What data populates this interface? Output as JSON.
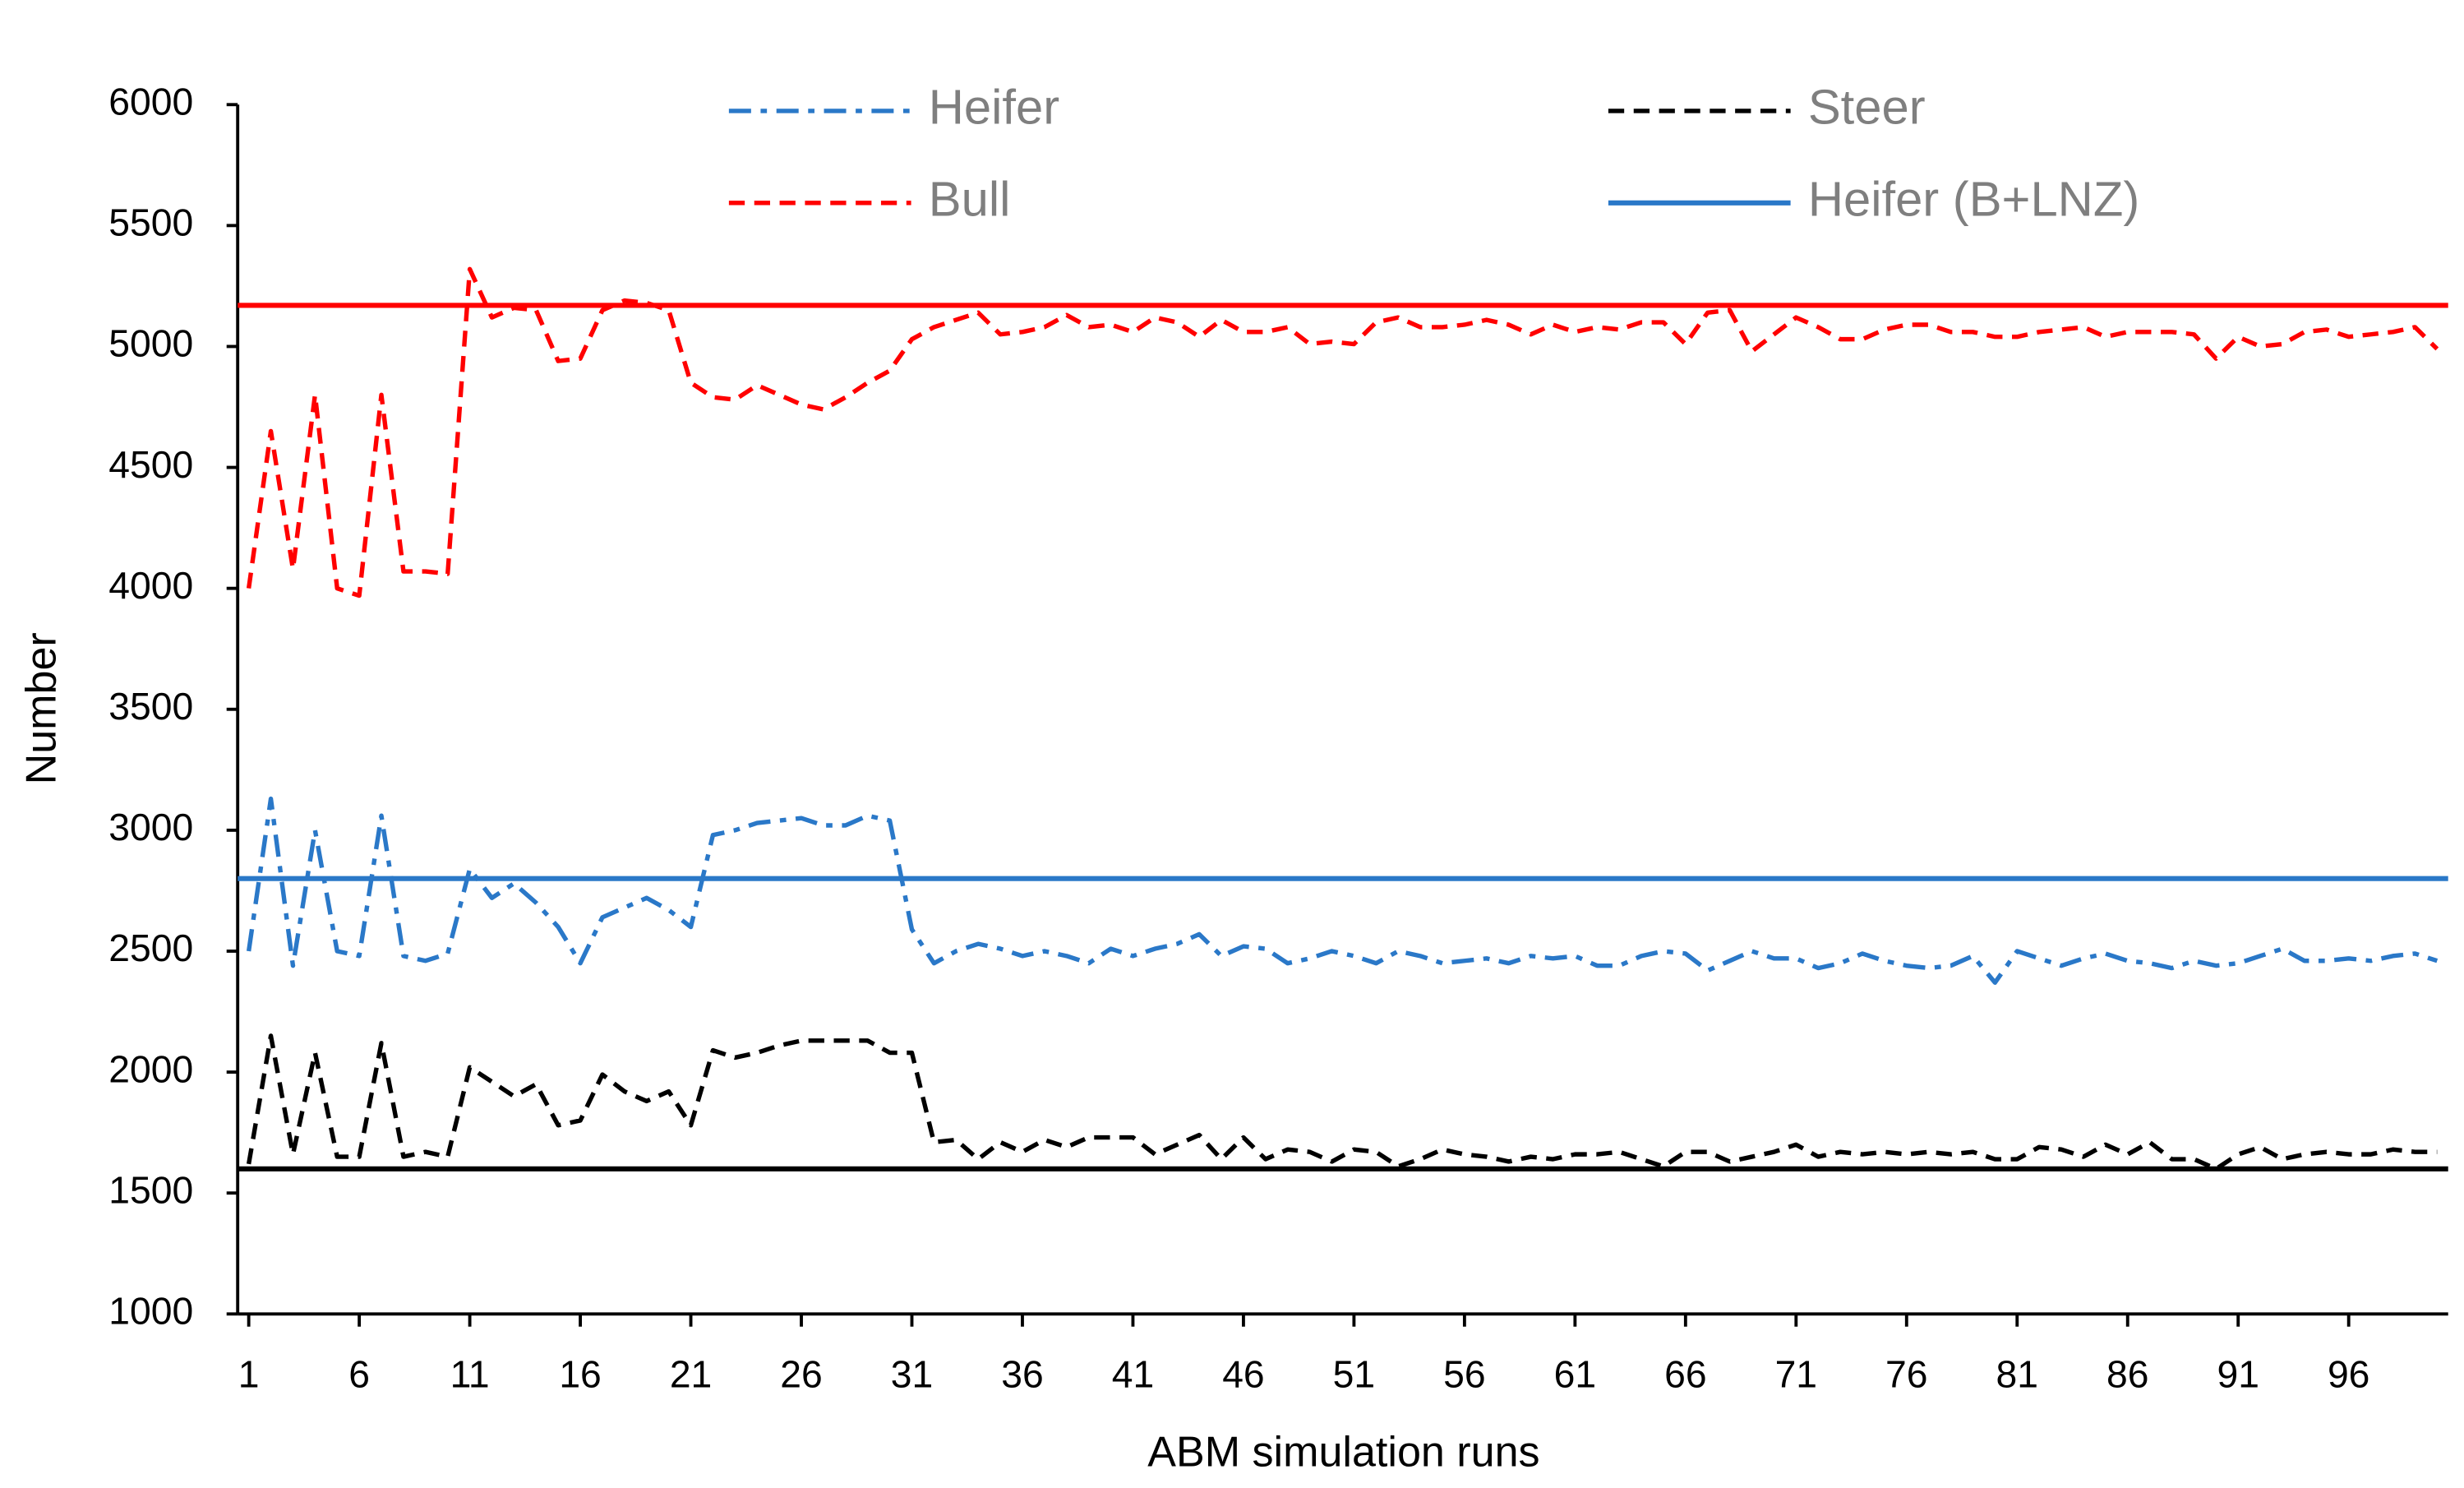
{
  "chart_data": {
    "type": "line",
    "x_label": "ABM simulation runs",
    "y_label": "Number",
    "x": [
      1,
      2,
      3,
      4,
      5,
      6,
      7,
      8,
      9,
      10,
      11,
      12,
      13,
      14,
      15,
      16,
      17,
      18,
      19,
      20,
      21,
      22,
      23,
      24,
      25,
      26,
      27,
      28,
      29,
      30,
      31,
      32,
      33,
      34,
      35,
      36,
      37,
      38,
      39,
      40,
      41,
      42,
      43,
      44,
      45,
      46,
      47,
      48,
      49,
      50,
      51,
      52,
      53,
      54,
      55,
      56,
      57,
      58,
      59,
      60,
      61,
      62,
      63,
      64,
      65,
      66,
      67,
      68,
      69,
      70,
      71,
      72,
      73,
      74,
      75,
      76,
      77,
      78,
      79,
      80,
      81,
      82,
      83,
      84,
      85,
      86,
      87,
      88,
      89,
      90,
      91,
      92,
      93,
      94,
      95,
      96,
      97,
      98,
      99,
      100
    ],
    "xlim": [
      0.5,
      100.5
    ],
    "xticks": [
      1,
      6,
      11,
      16,
      21,
      26,
      31,
      36,
      41,
      46,
      51,
      56,
      61,
      66,
      71,
      76,
      81,
      86,
      91,
      96
    ],
    "ylim": [
      1000,
      6000
    ],
    "yticks": [
      1000,
      1500,
      2000,
      2500,
      3000,
      3500,
      4000,
      4500,
      5000,
      5500,
      6000
    ],
    "series": [
      {
        "name": "Heifer",
        "color": "#2a78c8",
        "style": "dash-dot",
        "values": [
          2500,
          3130,
          2440,
          3000,
          2500,
          2480,
          3060,
          2480,
          2460,
          2490,
          2840,
          2720,
          2780,
          2700,
          2600,
          2450,
          2640,
          2680,
          2720,
          2670,
          2600,
          2980,
          3000,
          3030,
          3040,
          3050,
          3020,
          3020,
          3060,
          3040,
          2590,
          2450,
          2500,
          2530,
          2510,
          2480,
          2500,
          2480,
          2450,
          2510,
          2480,
          2510,
          2530,
          2570,
          2480,
          2520,
          2510,
          2450,
          2470,
          2500,
          2480,
          2450,
          2500,
          2480,
          2450,
          2460,
          2470,
          2450,
          2480,
          2470,
          2480,
          2440,
          2440,
          2480,
          2500,
          2490,
          2420,
          2460,
          2500,
          2470,
          2470,
          2430,
          2450,
          2490,
          2460,
          2440,
          2430,
          2440,
          2480,
          2370,
          2500,
          2470,
          2440,
          2470,
          2490,
          2460,
          2450,
          2430,
          2460,
          2440,
          2450,
          2480,
          2510,
          2460,
          2460,
          2470,
          2460,
          2480,
          2490,
          2460
        ]
      },
      {
        "name": "Steer",
        "color": "#000000",
        "style": "dash",
        "values": [
          1620,
          2150,
          1660,
          2080,
          1650,
          1650,
          2120,
          1650,
          1670,
          1650,
          2020,
          1960,
          1900,
          1950,
          1780,
          1800,
          1990,
          1920,
          1880,
          1920,
          1780,
          2090,
          2060,
          2080,
          2110,
          2130,
          2130,
          2130,
          2130,
          2080,
          2080,
          1710,
          1720,
          1640,
          1710,
          1670,
          1720,
          1690,
          1730,
          1730,
          1730,
          1660,
          1700,
          1740,
          1640,
          1730,
          1640,
          1680,
          1670,
          1630,
          1680,
          1670,
          1610,
          1640,
          1680,
          1660,
          1650,
          1630,
          1650,
          1640,
          1660,
          1660,
          1670,
          1640,
          1610,
          1670,
          1670,
          1630,
          1650,
          1670,
          1700,
          1650,
          1670,
          1660,
          1670,
          1660,
          1670,
          1660,
          1670,
          1640,
          1640,
          1690,
          1680,
          1650,
          1700,
          1660,
          1710,
          1640,
          1640,
          1600,
          1660,
          1690,
          1640,
          1660,
          1670,
          1660,
          1660,
          1680,
          1670,
          1670
        ]
      },
      {
        "name": "Bull",
        "color": "#ff0000",
        "style": "dash",
        "values": [
          4000,
          4650,
          4080,
          4800,
          4000,
          3970,
          4800,
          4070,
          4070,
          4060,
          5320,
          5120,
          5160,
          5150,
          4940,
          4950,
          5150,
          5190,
          5180,
          5150,
          4850,
          4790,
          4780,
          4840,
          4800,
          4760,
          4740,
          4790,
          4850,
          4900,
          5030,
          5080,
          5110,
          5140,
          5050,
          5060,
          5080,
          5130,
          5080,
          5090,
          5060,
          5120,
          5100,
          5040,
          5110,
          5060,
          5060,
          5080,
          5010,
          5020,
          5010,
          5100,
          5120,
          5080,
          5080,
          5090,
          5110,
          5090,
          5050,
          5090,
          5060,
          5080,
          5070,
          5100,
          5100,
          5010,
          5140,
          5150,
          4980,
          5050,
          5120,
          5080,
          5030,
          5030,
          5070,
          5090,
          5090,
          5060,
          5060,
          5040,
          5040,
          5060,
          5070,
          5080,
          5040,
          5060,
          5060,
          5060,
          5050,
          4950,
          5040,
          5000,
          5010,
          5060,
          5070,
          5040,
          5050,
          5060,
          5080,
          4990
        ]
      },
      {
        "name": "Heifer (B+LNZ)",
        "color": "#2a78c8",
        "style": "solid",
        "x": [
          0.5,
          100.5
        ],
        "values": [
          2800,
          2800
        ]
      },
      {
        "color": "#ff0000",
        "style": "solid",
        "x": [
          0.5,
          100.5
        ],
        "values": [
          5170,
          5170
        ]
      },
      {
        "color": "#000000",
        "style": "solid",
        "x": [
          0.5,
          100.5
        ],
        "values": [
          1600,
          1600
        ]
      }
    ]
  }
}
